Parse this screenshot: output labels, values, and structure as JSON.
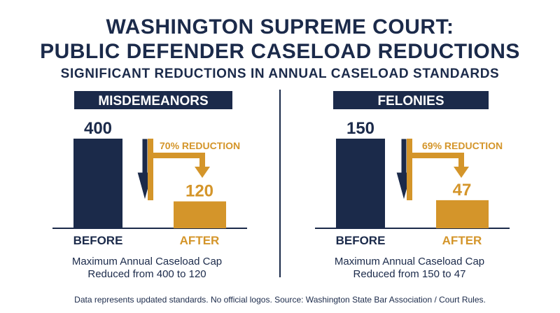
{
  "header": {
    "title_line1": "WASHINGTON SUPREME COURT:",
    "title_line2": "PUBLIC DEFENDER CASELOAD REDUCTIONS",
    "subtitle": "SIGNIFICANT REDUCTIONS IN ANNUAL CASELOAD STANDARDS"
  },
  "colors": {
    "navy": "#1b2a4a",
    "gold": "#d4952a"
  },
  "chart_data": [
    {
      "type": "bar",
      "title": "MISDEMEANORS",
      "categories": [
        "BEFORE",
        "AFTER"
      ],
      "values": [
        400,
        120
      ],
      "value_labels": [
        "400",
        "120"
      ],
      "annotation": "70% REDUCTION",
      "caption_line1": "Maximum Annual Caseload Cap",
      "caption_line2": "Reduced from 400 to 120"
    },
    {
      "type": "bar",
      "title": "FELONIES",
      "categories": [
        "BEFORE",
        "AFTER"
      ],
      "values": [
        150,
        47
      ],
      "value_labels": [
        "150",
        "47"
      ],
      "annotation": "69% REDUCTION",
      "caption_line1": "Maximum Annual Caseload Cap",
      "caption_line2": "Reduced from 150 to 47"
    }
  ],
  "footnote": "Data represents updated standards. No official logos. Source: Washington State Bar Association / Court Rules."
}
